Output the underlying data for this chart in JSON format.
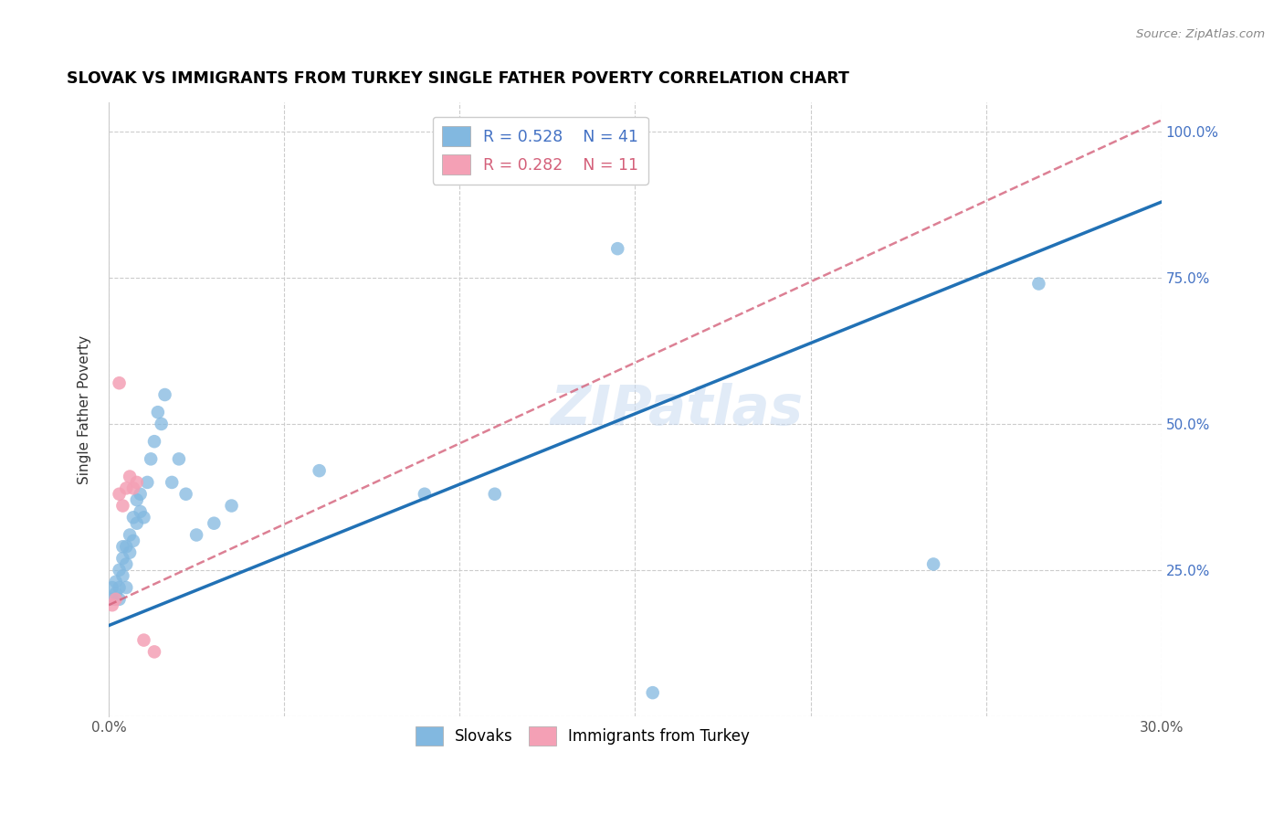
{
  "title": "SLOVAK VS IMMIGRANTS FROM TURKEY SINGLE FATHER POVERTY CORRELATION CHART",
  "source": "Source: ZipAtlas.com",
  "ylabel_label": "Single Father Poverty",
  "x_min": 0.0,
  "x_max": 0.3,
  "y_min": 0.0,
  "y_max": 1.05,
  "slovak_color": "#82b8e0",
  "turkey_color": "#f4a0b5",
  "slovak_line_color": "#2171b5",
  "turkey_line_color": "#d4607a",
  "background_color": "#ffffff",
  "grid_color": "#cccccc",
  "R_slovak": 0.528,
  "N_slovak": 41,
  "R_turkey": 0.282,
  "N_turkey": 11,
  "watermark": "ZIPatlas",
  "slovak_x": [
    0.001,
    0.001,
    0.002,
    0.002,
    0.003,
    0.003,
    0.003,
    0.004,
    0.004,
    0.004,
    0.005,
    0.005,
    0.005,
    0.006,
    0.006,
    0.007,
    0.007,
    0.008,
    0.008,
    0.009,
    0.009,
    0.01,
    0.011,
    0.012,
    0.013,
    0.014,
    0.015,
    0.016,
    0.018,
    0.02,
    0.022,
    0.025,
    0.03,
    0.035,
    0.06,
    0.09,
    0.11,
    0.145,
    0.155,
    0.235,
    0.265
  ],
  "slovak_y": [
    0.2,
    0.22,
    0.21,
    0.23,
    0.2,
    0.22,
    0.25,
    0.24,
    0.27,
    0.29,
    0.22,
    0.26,
    0.29,
    0.28,
    0.31,
    0.3,
    0.34,
    0.33,
    0.37,
    0.35,
    0.38,
    0.34,
    0.4,
    0.44,
    0.47,
    0.52,
    0.5,
    0.55,
    0.4,
    0.44,
    0.38,
    0.31,
    0.33,
    0.36,
    0.42,
    0.38,
    0.38,
    0.8,
    0.04,
    0.26,
    0.74
  ],
  "turkey_x": [
    0.001,
    0.002,
    0.003,
    0.003,
    0.004,
    0.005,
    0.006,
    0.007,
    0.008,
    0.01,
    0.013
  ],
  "turkey_y": [
    0.19,
    0.2,
    0.38,
    0.57,
    0.36,
    0.39,
    0.41,
    0.39,
    0.4,
    0.13,
    0.11
  ],
  "slovak_line_x0": 0.0,
  "slovak_line_y0": 0.155,
  "slovak_line_x1": 0.3,
  "slovak_line_y1": 0.88,
  "turkey_line_x0": 0.0,
  "turkey_line_y0": 0.19,
  "turkey_line_x1": 0.3,
  "turkey_line_y1": 1.02
}
